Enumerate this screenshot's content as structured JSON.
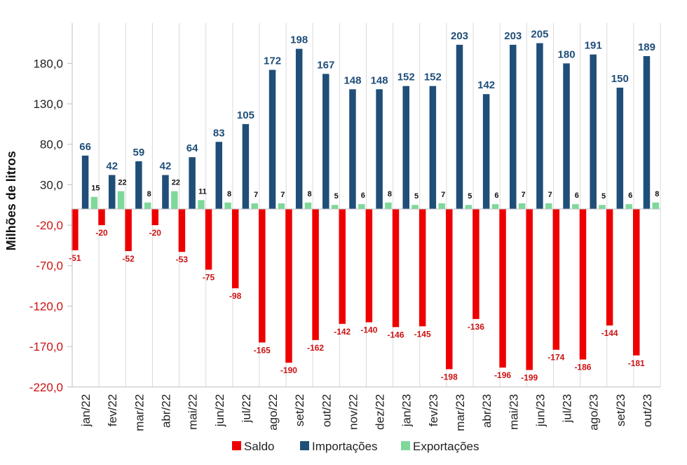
{
  "chart_data": {
    "type": "bar",
    "ylabel": "Milhões de litros",
    "ylim": [
      -220,
      230
    ],
    "yticks": [
      "180,0",
      "130,0",
      "80,0",
      "30,0",
      "-20,0",
      "-70,0",
      "-120,0",
      "-170,0",
      "-220,0"
    ],
    "ytick_values": [
      180,
      130,
      80,
      30,
      -20,
      -70,
      -120,
      -170,
      -220
    ],
    "categories": [
      "jan/22",
      "fev/22",
      "mar/22",
      "abr/22",
      "mai/22",
      "jun/22",
      "jul/22",
      "ago/22",
      "set/22",
      "out/22",
      "nov/22",
      "dez/22",
      "jan/23",
      "fev/23",
      "mar/23",
      "abr/23",
      "mai/23",
      "jun/23",
      "jul/23",
      "ago/23",
      "set/23",
      "out/23"
    ],
    "series": [
      {
        "name": "Saldo",
        "color": "#ee0000",
        "label_color": "#cc1111",
        "values": [
          -51,
          -20,
          -52,
          -20,
          -53,
          -75,
          -98,
          -165,
          -190,
          -162,
          -142,
          -140,
          -146,
          -145,
          -198,
          -136,
          -196,
          -199,
          -174,
          -186,
          -144,
          -181
        ]
      },
      {
        "name": "Importações",
        "color": "#1f4e79",
        "label_color": "#1f4e79",
        "values": [
          66,
          42,
          59,
          42,
          64,
          83,
          105,
          172,
          198,
          167,
          148,
          148,
          152,
          152,
          203,
          142,
          203,
          205,
          180,
          191,
          150,
          189
        ]
      },
      {
        "name": "Exportações",
        "color": "#7fd89a",
        "label_color": "#111111",
        "values": [
          15,
          22,
          8,
          22,
          11,
          8,
          7,
          7,
          8,
          5,
          6,
          8,
          5,
          7,
          5,
          6,
          7,
          7,
          6,
          5,
          6,
          8
        ]
      }
    ],
    "grid": "vertical",
    "legend_position": "bottom"
  }
}
